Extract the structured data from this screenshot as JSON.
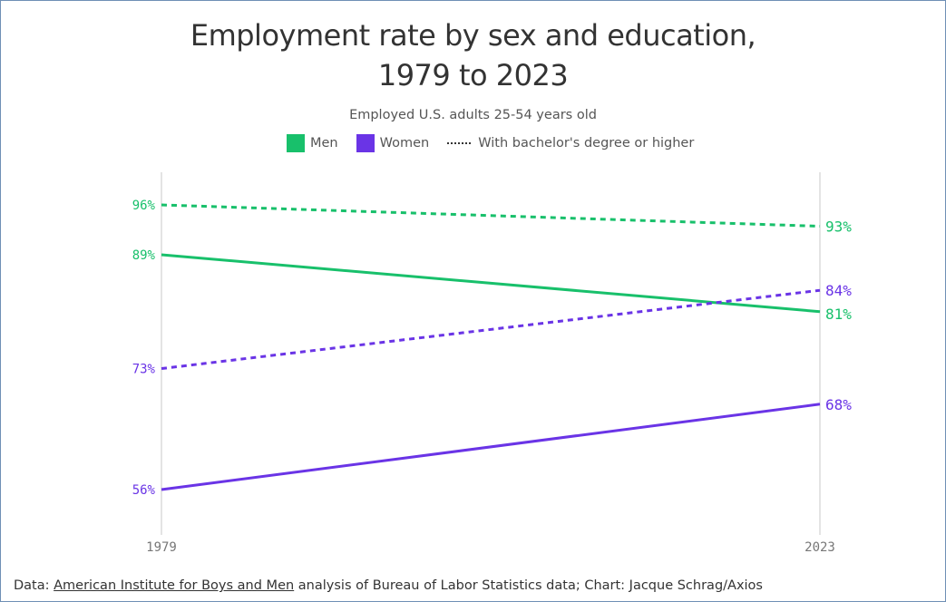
{
  "chart_data": {
    "type": "line",
    "title_line1": "Employment rate by sex and education,",
    "title_line2": "1979 to 2023",
    "subtitle": "Employed U.S. adults 25-54 years old",
    "legend": [
      {
        "label": "Men",
        "color": "#18c06b",
        "kind": "swatch"
      },
      {
        "label": "Women",
        "color": "#6a34e6",
        "kind": "swatch"
      },
      {
        "label": "With bachelor's degree or higher",
        "color": "#333333",
        "kind": "dotted"
      }
    ],
    "x": [
      "1979",
      "2023"
    ],
    "xlim": [
      1979,
      2023
    ],
    "ylim": [
      50,
      100
    ],
    "series": [
      {
        "name": "Men with bachelor's degree or higher",
        "color": "#18c06b",
        "dashed": true,
        "values": [
          96,
          93
        ],
        "labels": [
          "96%",
          "93%"
        ]
      },
      {
        "name": "Men",
        "color": "#18c06b",
        "dashed": false,
        "values": [
          89,
          81
        ],
        "labels": [
          "89%",
          "81%"
        ]
      },
      {
        "name": "Women with bachelor's degree or higher",
        "color": "#6a34e6",
        "dashed": true,
        "values": [
          73,
          84
        ],
        "labels": [
          "73%",
          "84%"
        ]
      },
      {
        "name": "Women",
        "color": "#6a34e6",
        "dashed": false,
        "values": [
          56,
          68
        ],
        "labels": [
          "56%",
          "68%"
        ]
      }
    ],
    "grid": false
  },
  "footer": {
    "prefix": "Data: ",
    "source_link": "American Institute for Boys and Men",
    "suffix": " analysis of Bureau of Labor Statistics data; Chart: Jacque Schrag/Axios"
  }
}
